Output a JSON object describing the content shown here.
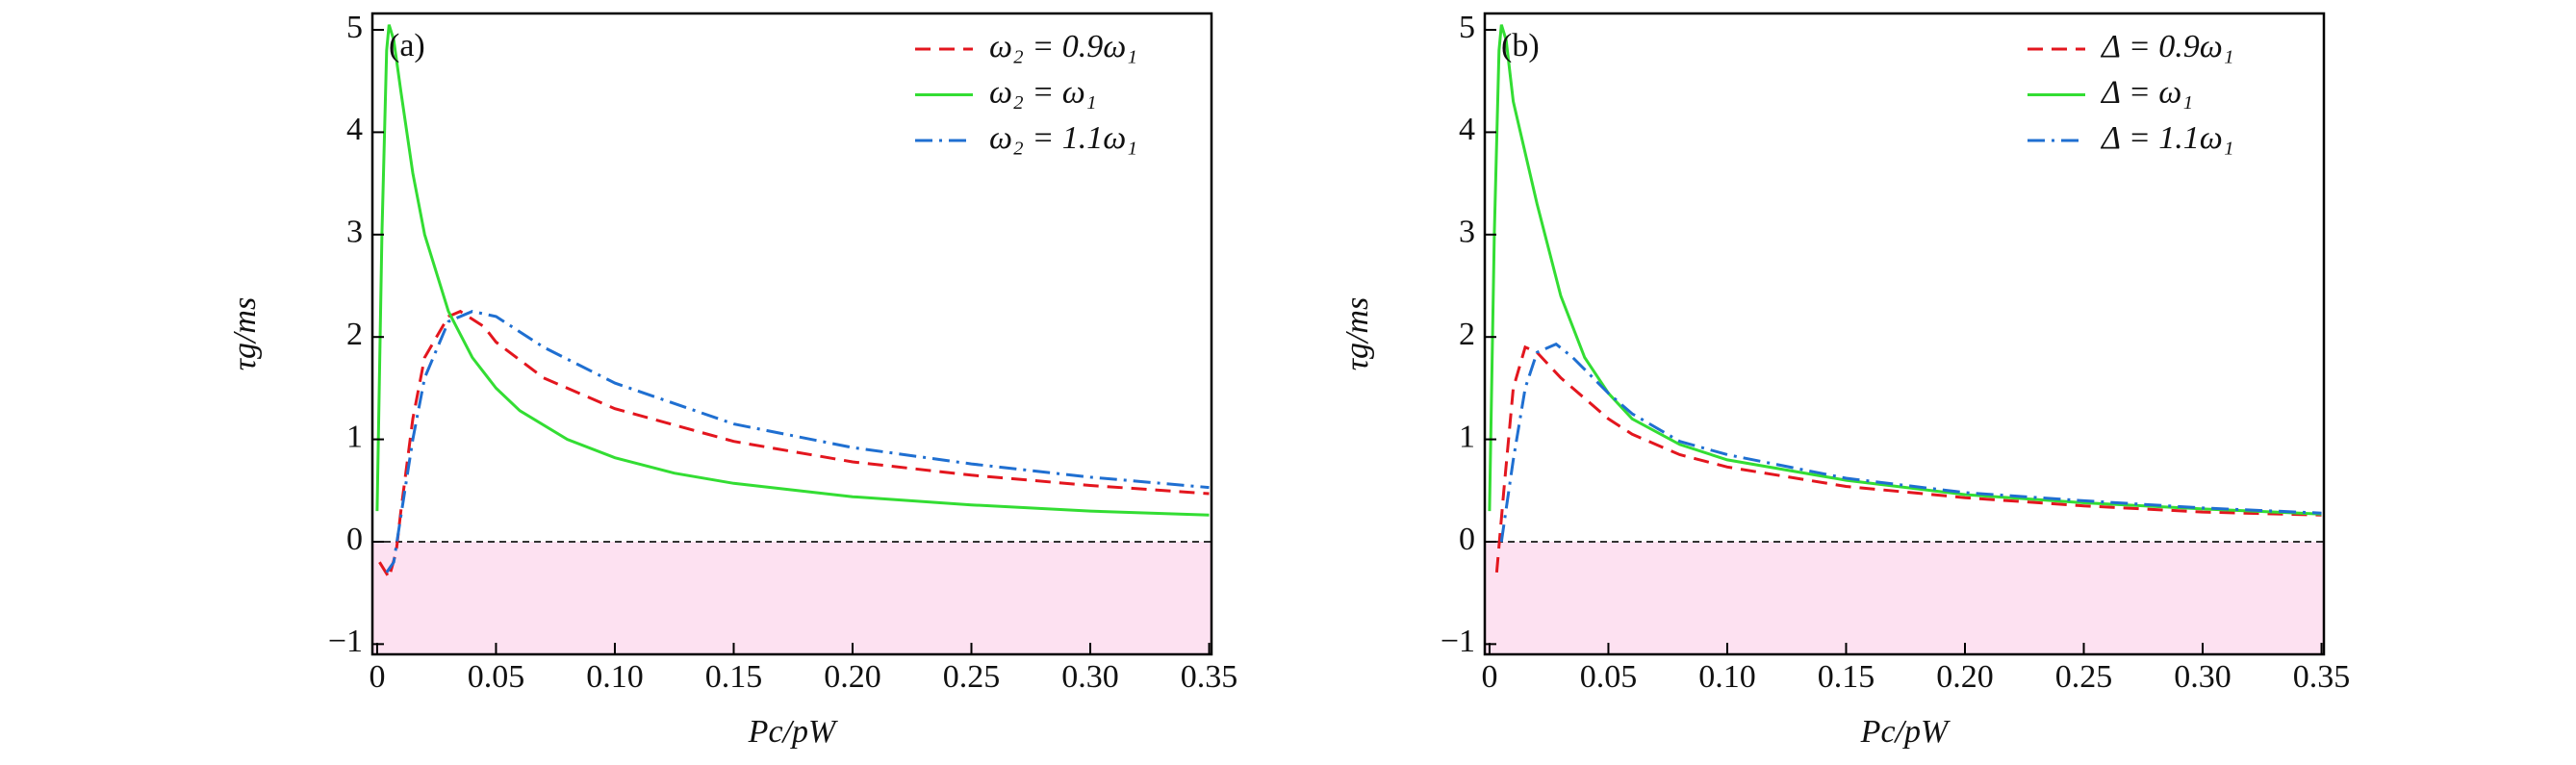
{
  "chart_data": [
    {
      "type": "line",
      "title": "(a)",
      "xlabel": "Pc/pW",
      "ylabel": "τg/ms",
      "xlim": [
        -0.002,
        0.351
      ],
      "ylim": [
        -1.1,
        5.16
      ],
      "xticks": [
        0,
        0.05,
        {
          "value": 0.1,
          "label": "0.10"
        },
        0.15,
        {
          "value": 0.2,
          "label": "0.20"
        },
        0.25,
        {
          "value": 0.3,
          "label": "0.30"
        },
        0.35
      ],
      "yticks": [
        {
          "value": -1,
          "label": "−1"
        },
        0,
        1,
        2,
        3,
        4,
        5
      ],
      "hline": 0,
      "legend": "upper right",
      "series": [
        {
          "name": "ω₂ = 0.9ω₁",
          "color": "#e3161e",
          "dash": "dashed",
          "x": [
            0.001,
            0.005,
            0.008,
            0.01,
            0.015,
            0.02,
            0.03,
            0.035,
            0.045,
            0.05,
            0.07,
            0.1,
            0.15,
            0.2,
            0.25,
            0.3,
            0.35
          ],
          "values": [
            -0.2,
            -0.35,
            -0.1,
            0.3,
            1.2,
            1.8,
            2.2,
            2.25,
            2.1,
            1.95,
            1.6,
            1.3,
            0.98,
            0.78,
            0.65,
            0.55,
            0.47
          ]
        },
        {
          "name": "ω₂ = ω₁",
          "color": "#33dd33",
          "dash": "solid",
          "x": [
            0,
            0.002,
            0.004,
            0.005,
            0.007,
            0.01,
            0.015,
            0.02,
            0.03,
            0.04,
            0.05,
            0.06,
            0.08,
            0.1,
            0.125,
            0.15,
            0.2,
            0.25,
            0.3,
            0.35
          ],
          "values": [
            0.3,
            3.0,
            4.8,
            5.05,
            4.9,
            4.4,
            3.6,
            3.0,
            2.25,
            1.8,
            1.5,
            1.28,
            1.0,
            0.82,
            0.67,
            0.57,
            0.44,
            0.36,
            0.3,
            0.26
          ]
        },
        {
          "name": "ω₂ = 1.1ω₁",
          "color": "#1f6fd1",
          "dash": "dashdot",
          "x": [
            0.004,
            0.007,
            0.01,
            0.015,
            0.02,
            0.03,
            0.04,
            0.05,
            0.07,
            0.1,
            0.15,
            0.2,
            0.25,
            0.3,
            0.35
          ],
          "values": [
            -0.3,
            -0.2,
            0.25,
            1.0,
            1.6,
            2.15,
            2.25,
            2.2,
            1.9,
            1.55,
            1.15,
            0.92,
            0.76,
            0.63,
            0.53
          ]
        }
      ]
    },
    {
      "type": "line",
      "title": "(b)",
      "xlabel": "Pc/pW",
      "ylabel": "τg/ms",
      "xlim": [
        -0.002,
        0.351
      ],
      "ylim": [
        -1.1,
        5.16
      ],
      "xticks": [
        0,
        0.05,
        {
          "value": 0.1,
          "label": "0.10"
        },
        0.15,
        {
          "value": 0.2,
          "label": "0.20"
        },
        0.25,
        {
          "value": 0.3,
          "label": "0.30"
        },
        0.35
      ],
      "yticks": [
        {
          "value": -1,
          "label": "−1"
        },
        0,
        1,
        2,
        3,
        4,
        5
      ],
      "hline": 0,
      "legend": "upper right",
      "series": [
        {
          "name": "Δ = 0.9ω₁",
          "color": "#e3161e",
          "dash": "dashed",
          "x": [
            0.003,
            0.006,
            0.01,
            0.015,
            0.02,
            0.03,
            0.04,
            0.05,
            0.06,
            0.08,
            0.1,
            0.15,
            0.2,
            0.25,
            0.3,
            0.35
          ],
          "values": [
            -0.3,
            0.5,
            1.5,
            1.9,
            1.85,
            1.6,
            1.4,
            1.2,
            1.05,
            0.85,
            0.73,
            0.54,
            0.43,
            0.35,
            0.29,
            0.26
          ]
        },
        {
          "name": "Δ = ω₁",
          "color": "#33dd33",
          "dash": "solid",
          "x": [
            0,
            0.002,
            0.004,
            0.005,
            0.007,
            0.01,
            0.02,
            0.03,
            0.04,
            0.05,
            0.06,
            0.08,
            0.1,
            0.15,
            0.2,
            0.25,
            0.3,
            0.35
          ],
          "values": [
            0.3,
            3.0,
            4.8,
            5.05,
            4.9,
            4.3,
            3.3,
            2.4,
            1.8,
            1.45,
            1.2,
            0.95,
            0.8,
            0.6,
            0.46,
            0.38,
            0.32,
            0.27
          ]
        },
        {
          "name": "Δ = 1.1ω₁",
          "color": "#1f6fd1",
          "dash": "dashdot",
          "x": [
            0.005,
            0.01,
            0.015,
            0.02,
            0.028,
            0.035,
            0.05,
            0.06,
            0.08,
            0.1,
            0.15,
            0.2,
            0.25,
            0.3,
            0.35
          ],
          "values": [
            0,
            0.8,
            1.5,
            1.85,
            1.93,
            1.8,
            1.45,
            1.25,
            0.98,
            0.85,
            0.62,
            0.48,
            0.4,
            0.33,
            0.28
          ]
        }
      ]
    }
  ]
}
